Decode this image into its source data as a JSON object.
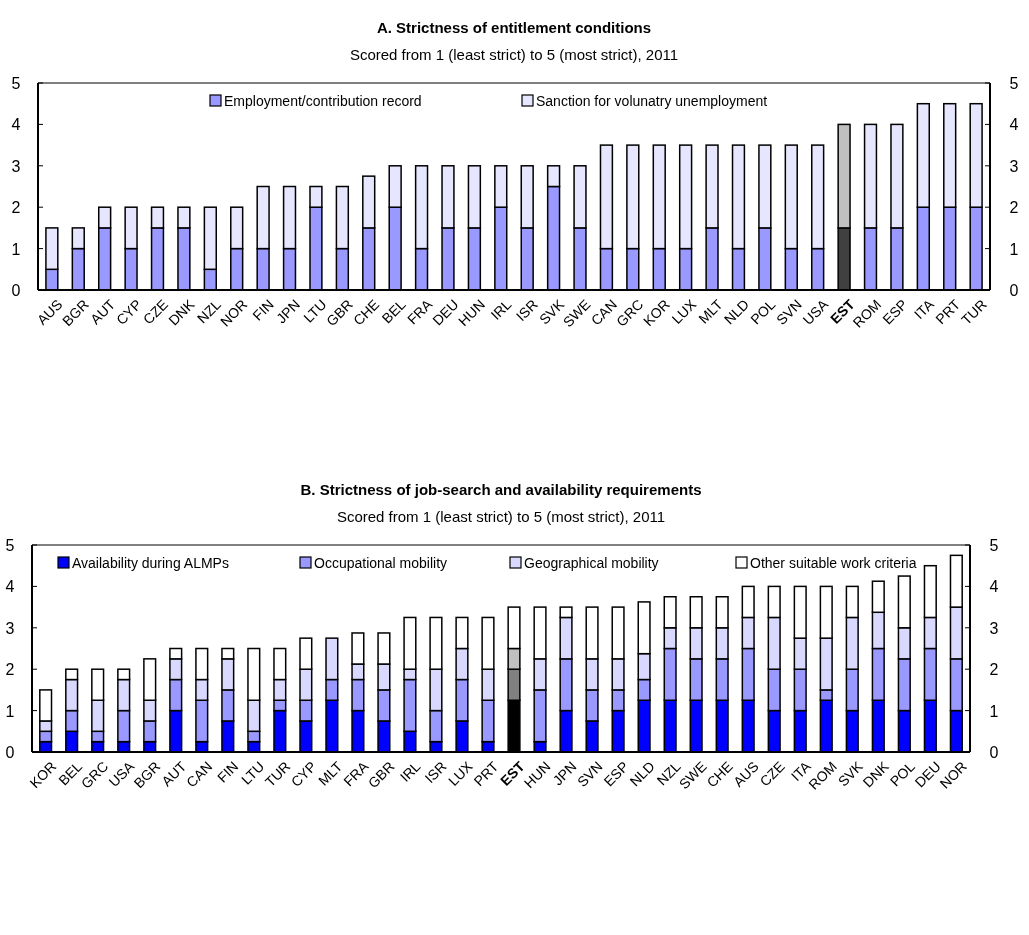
{
  "chart_data": [
    {
      "type": "bar",
      "title": "A. Strictness of entitlement conditions",
      "subtitle": "Scored from 1 (least strict) to 5 (most strict), 2011",
      "stacked": true,
      "legend": "top",
      "grid": false,
      "categories": [
        "AUS",
        "BGR",
        "AUT",
        "CYP",
        "CZE",
        "DNK",
        "NZL",
        "NOR",
        "FIN",
        "JPN",
        "LTU",
        "GBR",
        "CHE",
        "BEL",
        "FRA",
        "DEU",
        "HUN",
        "IRL",
        "ISR",
        "SVK",
        "SWE",
        "CAN",
        "GRC",
        "KOR",
        "LUX",
        "MLT",
        "NLD",
        "POL",
        "SVN",
        "USA",
        "EST",
        "ROM",
        "ESP",
        "ITA",
        "PRT",
        "TUR"
      ],
      "ylim": [
        0,
        5
      ],
      "yticks": [
        0,
        1,
        2,
        3,
        4,
        5
      ],
      "y2lim": [
        0,
        5
      ],
      "y2ticks": [
        0,
        1,
        2,
        3,
        4,
        5
      ],
      "series": [
        {
          "name": "Employment/contribution record",
          "color": "#9999ff",
          "colors": [
            "#9999ff",
            "#9999ff",
            "#9999ff",
            "#9999ff",
            "#9999ff",
            "#9999ff",
            "#9999ff",
            "#9999ff",
            "#9999ff",
            "#9999ff",
            "#9999ff",
            "#9999ff",
            "#9999ff",
            "#9999ff",
            "#9999ff",
            "#9999ff",
            "#9999ff",
            "#9999ff",
            "#9999ff",
            "#9999ff",
            "#9999ff",
            "#9999ff",
            "#9999ff",
            "#9999ff",
            "#9999ff",
            "#9999ff",
            "#9999ff",
            "#9999ff",
            "#9999ff",
            "#9999ff",
            "#404040",
            "#9999ff",
            "#9999ff",
            "#9999ff",
            "#9999ff",
            "#9999ff"
          ],
          "values": [
            0.5,
            1,
            1.5,
            1,
            1.5,
            1.5,
            0.5,
            1,
            1,
            1,
            2,
            1,
            1.5,
            2,
            1,
            1.5,
            1.5,
            2,
            1.5,
            2.5,
            1.5,
            1,
            1,
            1,
            1,
            1.5,
            1,
            1.5,
            1,
            1,
            1.5,
            1.5,
            1.5,
            2,
            2,
            2
          ]
        },
        {
          "name": "Sanction for volunatry unemployment",
          "color": "#e6e6ff",
          "colors": [
            "#e6e6ff",
            "#e6e6ff",
            "#e6e6ff",
            "#e6e6ff",
            "#e6e6ff",
            "#e6e6ff",
            "#e6e6ff",
            "#e6e6ff",
            "#e6e6ff",
            "#e6e6ff",
            "#e6e6ff",
            "#e6e6ff",
            "#e6e6ff",
            "#e6e6ff",
            "#e6e6ff",
            "#e6e6ff",
            "#e6e6ff",
            "#e6e6ff",
            "#e6e6ff",
            "#e6e6ff",
            "#e6e6ff",
            "#e6e6ff",
            "#e6e6ff",
            "#e6e6ff",
            "#e6e6ff",
            "#e6e6ff",
            "#e6e6ff",
            "#e6e6ff",
            "#e6e6ff",
            "#e6e6ff",
            "#c0c0c0",
            "#e6e6ff",
            "#e6e6ff",
            "#e6e6ff",
            "#e6e6ff",
            "#e6e6ff"
          ],
          "values": [
            1,
            0.5,
            0.5,
            1,
            0.5,
            0.5,
            1.5,
            1,
            1.5,
            1.5,
            0.5,
            1.5,
            1.25,
            1,
            2,
            1.5,
            1.5,
            1,
            1.5,
            0.5,
            1.5,
            2.5,
            2.5,
            2.5,
            2.5,
            2,
            2.5,
            2,
            2.5,
            2.5,
            2.5,
            2.5,
            2.5,
            2.5,
            2.5,
            2.5
          ]
        }
      ]
    },
    {
      "type": "bar",
      "title": "B. Strictness of job-search and availability requirements",
      "subtitle": "Scored from 1 (least strict) to 5 (most strict), 2011",
      "stacked": true,
      "legend": "top",
      "grid": false,
      "categories": [
        "KOR",
        "BEL",
        "GRC",
        "USA",
        "BGR",
        "AUT",
        "CAN",
        "FIN",
        "LTU",
        "TUR",
        "CYP",
        "MLT",
        "FRA",
        "GBR",
        "IRL",
        "ISR",
        "LUX",
        "PRT",
        "EST",
        "HUN",
        "JPN",
        "SVN",
        "ESP",
        "NLD",
        "NZL",
        "SWE",
        "CHE",
        "AUS",
        "CZE",
        "ITA",
        "ROM",
        "SVK",
        "DNK",
        "POL",
        "DEU",
        "NOR"
      ],
      "ylim": [
        0,
        5
      ],
      "yticks": [
        0,
        1,
        2,
        3,
        4,
        5
      ],
      "y2lim": [
        0,
        5
      ],
      "y2ticks": [
        0,
        1,
        2,
        3,
        4,
        5
      ],
      "series": [
        {
          "name": "Availability during ALMPs",
          "color": "#0000ff",
          "colors": [
            "#0000ff",
            "#0000ff",
            "#0000ff",
            "#0000ff",
            "#0000ff",
            "#0000ff",
            "#0000ff",
            "#0000ff",
            "#0000ff",
            "#0000ff",
            "#0000ff",
            "#0000ff",
            "#0000ff",
            "#0000ff",
            "#0000ff",
            "#0000ff",
            "#0000ff",
            "#0000ff",
            "#000000",
            "#0000ff",
            "#0000ff",
            "#0000ff",
            "#0000ff",
            "#0000ff",
            "#0000ff",
            "#0000ff",
            "#0000ff",
            "#0000ff",
            "#0000ff",
            "#0000ff",
            "#0000ff",
            "#0000ff",
            "#0000ff",
            "#0000ff",
            "#0000ff",
            "#0000ff"
          ],
          "values": [
            0.25,
            0.5,
            0.25,
            0.25,
            0.25,
            1,
            0.25,
            0.75,
            0.25,
            1,
            0.75,
            1.25,
            1,
            0.75,
            0.5,
            0.25,
            0.75,
            0.25,
            1.25,
            0.25,
            1,
            0.75,
            1,
            1.25,
            1.25,
            1.25,
            1.25,
            1.25,
            1,
            1,
            1.25,
            1,
            1.25,
            1,
            1.25,
            1
          ]
        },
        {
          "name": "Occupational mobility",
          "color": "#9999ff",
          "colors": [
            "#9999ff",
            "#9999ff",
            "#9999ff",
            "#9999ff",
            "#9999ff",
            "#9999ff",
            "#9999ff",
            "#9999ff",
            "#9999ff",
            "#9999ff",
            "#9999ff",
            "#9999ff",
            "#9999ff",
            "#9999ff",
            "#9999ff",
            "#9999ff",
            "#9999ff",
            "#9999ff",
            "#808080",
            "#9999ff",
            "#9999ff",
            "#9999ff",
            "#9999ff",
            "#9999ff",
            "#9999ff",
            "#9999ff",
            "#9999ff",
            "#9999ff",
            "#9999ff",
            "#9999ff",
            "#9999ff",
            "#9999ff",
            "#9999ff",
            "#9999ff",
            "#9999ff",
            "#9999ff"
          ],
          "values": [
            0.25,
            0.5,
            0.25,
            0.75,
            0.5,
            0.75,
            1,
            0.75,
            0.25,
            0.25,
            0.5,
            0.5,
            0.75,
            0.75,
            1.25,
            0.75,
            1,
            1,
            0.75,
            1.25,
            1.25,
            0.75,
            0.5,
            0.5,
            1.25,
            1,
            1,
            1.25,
            1,
            1,
            0.25,
            1,
            1.25,
            1.25,
            1.25,
            1.25
          ]
        },
        {
          "name": "Geographical mobility",
          "color": "#d9d9ff",
          "colors": [
            "#d9d9ff",
            "#d9d9ff",
            "#d9d9ff",
            "#d9d9ff",
            "#d9d9ff",
            "#d9d9ff",
            "#d9d9ff",
            "#d9d9ff",
            "#d9d9ff",
            "#d9d9ff",
            "#d9d9ff",
            "#d9d9ff",
            "#d9d9ff",
            "#d9d9ff",
            "#d9d9ff",
            "#d9d9ff",
            "#d9d9ff",
            "#d9d9ff",
            "#c0c0c0",
            "#d9d9ff",
            "#d9d9ff",
            "#d9d9ff",
            "#d9d9ff",
            "#d9d9ff",
            "#d9d9ff",
            "#d9d9ff",
            "#d9d9ff",
            "#d9d9ff",
            "#d9d9ff",
            "#d9d9ff",
            "#d9d9ff",
            "#d9d9ff",
            "#d9d9ff",
            "#d9d9ff",
            "#d9d9ff",
            "#d9d9ff"
          ],
          "values": [
            0.25,
            0.75,
            0.75,
            0.75,
            0.5,
            0.5,
            0.5,
            0.75,
            0.75,
            0.5,
            0.75,
            1,
            0.375,
            0.625,
            0.25,
            1,
            0.75,
            0.75,
            0.5,
            0.75,
            1,
            0.75,
            0.75,
            0.625,
            0.5,
            0.75,
            0.75,
            0.75,
            1.25,
            0.75,
            1.25,
            1.25,
            0.875,
            0.75,
            0.75,
            1.25
          ]
        },
        {
          "name": "Other suitable work criteria",
          "color": "#ffffff",
          "values": [
            0.75,
            0.25,
            0.75,
            0.25,
            1,
            0.25,
            0.75,
            0.25,
            1.25,
            0.75,
            0.75,
            0,
            0.75,
            0.75,
            1.25,
            1.25,
            0.75,
            1.25,
            1,
            1.25,
            0.25,
            1.25,
            1.25,
            1.25,
            0.75,
            0.75,
            0.75,
            0.75,
            0.75,
            1.25,
            1.25,
            0.75,
            0.75,
            1.25,
            1.25,
            1.25
          ]
        }
      ]
    }
  ]
}
